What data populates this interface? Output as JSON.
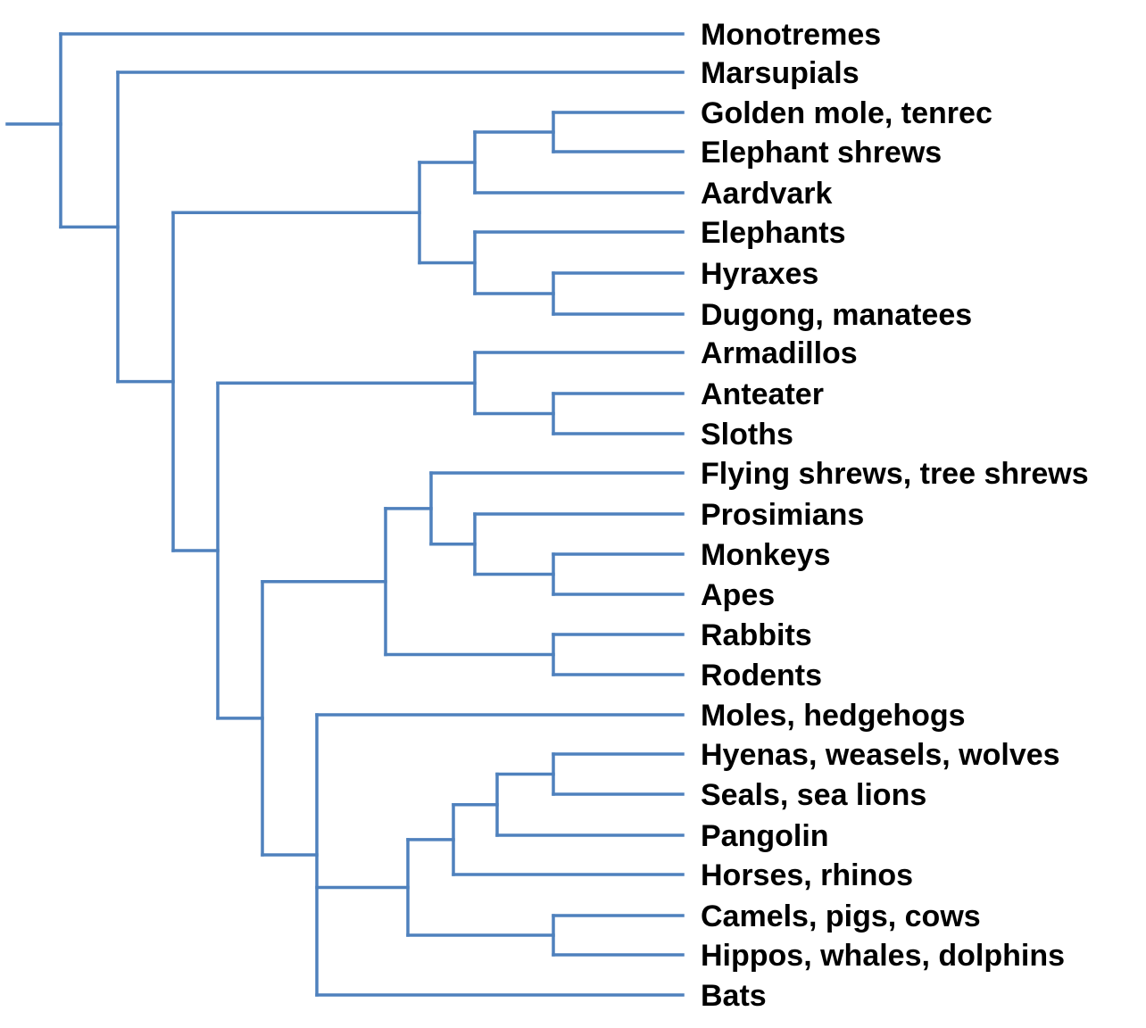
{
  "line_color": "#4f81bd",
  "text_color": "#000000",
  "taxa": [
    "Monotremes",
    "Marsupials",
    "Golden mole, tenrec",
    "Elephant shrews",
    "Aardvark",
    "Elephants",
    "Hyraxes",
    "Dugong, manatees",
    "Armadillos",
    "Anteater",
    "Sloths",
    "Flying shrews, tree shrews",
    "Prosimians",
    "Monkeys",
    "Apes",
    "Rabbits",
    "Rodents",
    "Moles, hedgehogs",
    "Hyenas, weasels, wolves",
    "Seals, sea lions",
    "Pangolin",
    "Horses, rhinos",
    "Camels, pigs, cows",
    "Hippos, whales, dolphins",
    "Bats"
  ],
  "tree": [
    0,
    [
      1,
      [
        [
          [
            [
              2,
              3
            ],
            4
          ],
          [
            5,
            [
              6,
              7
            ]
          ]
        ],
        [
          [
            8,
            [
              9,
              10
            ]
          ],
          [
            [
              [
                11,
                [
                  12,
                  [
                    13,
                    14
                  ]
                ]
              ],
              [
                15,
                16
              ]
            ],
            [
              17,
              [
                [
                  [
                    [
                      18,
                      19
                    ],
                    20
                  ],
                  21
                ],
                [
                  22,
                  23
                ]
              ],
              24
            ]
          ]
        ]
      ]
    ]
  ]
}
